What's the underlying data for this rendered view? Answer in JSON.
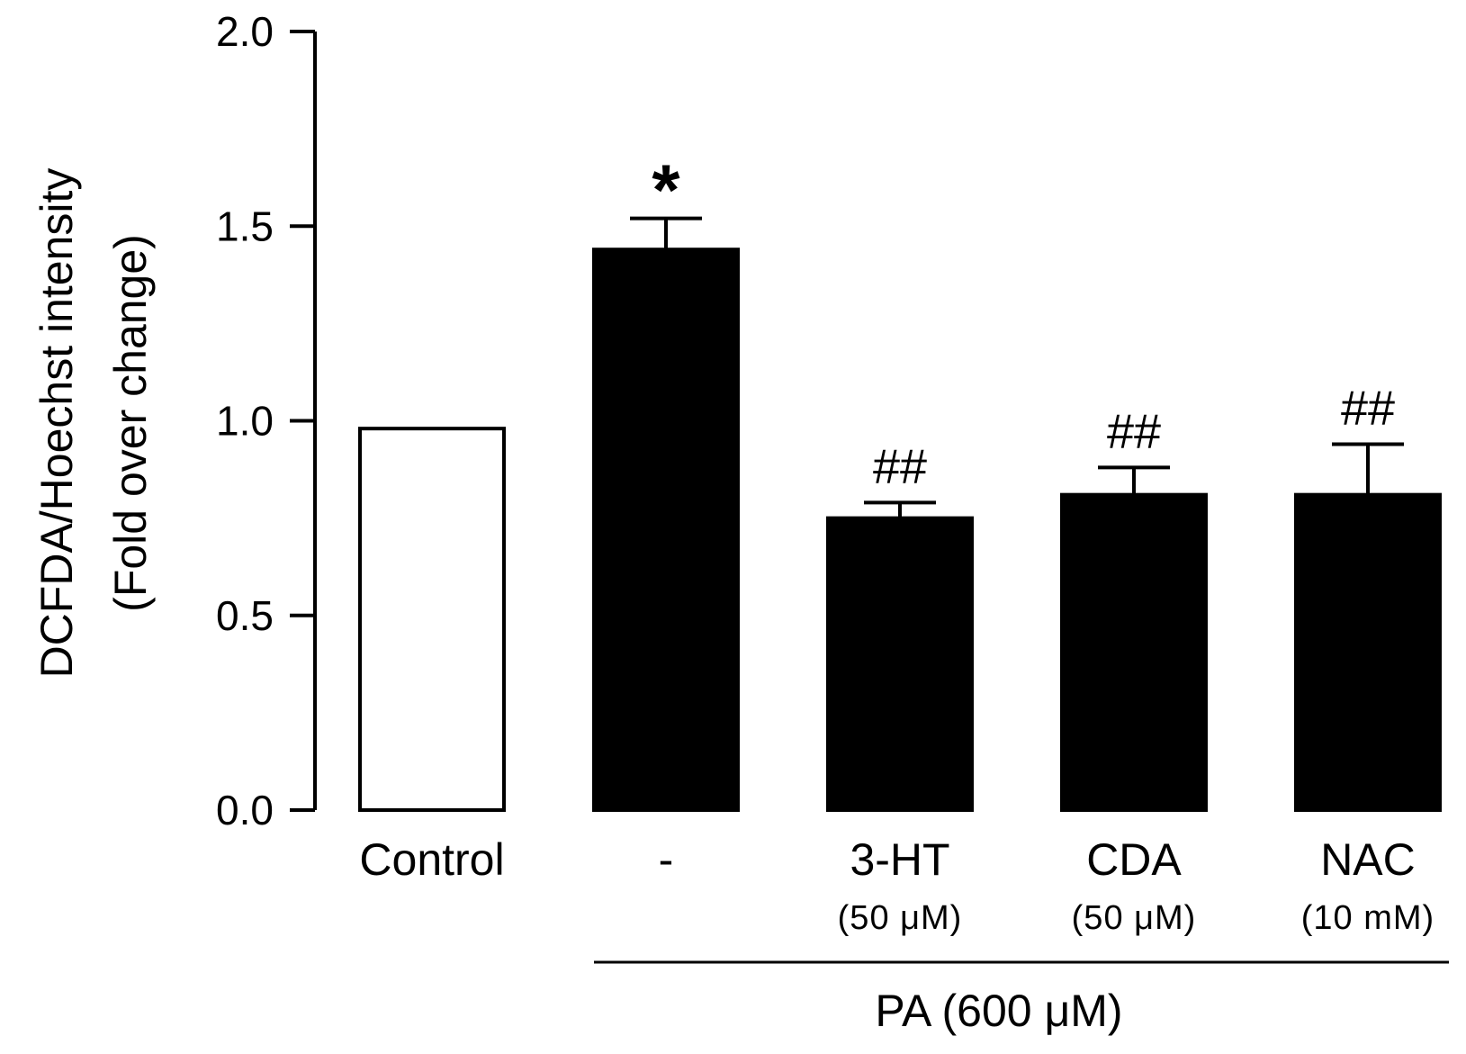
{
  "chart_data": {
    "type": "bar",
    "title": "",
    "ylabel": [
      "DCFDA/Hoechst intensity",
      "(Fold over change)"
    ],
    "ylim": [
      0.0,
      2.0
    ],
    "yticks": [
      "0.0",
      "0.5",
      "1.0",
      "1.5",
      "2.0"
    ],
    "categories": [
      "Control",
      "-",
      "3-HT",
      "CDA",
      "NAC"
    ],
    "sublabels": [
      "",
      "",
      "(50 μM)",
      "(50 μM)",
      "(10 mM)"
    ],
    "values": [
      0.98,
      1.44,
      0.75,
      0.81,
      0.81
    ],
    "errors": [
      0.0,
      0.08,
      0.04,
      0.07,
      0.13
    ],
    "fill_colors": [
      "#ffffff",
      "#000000",
      "#000000",
      "#000000",
      "#000000"
    ],
    "significance": [
      "",
      "*",
      "##",
      "##",
      "##"
    ],
    "group_label": "PA (600 μM)",
    "grid": false,
    "legend": "none"
  }
}
